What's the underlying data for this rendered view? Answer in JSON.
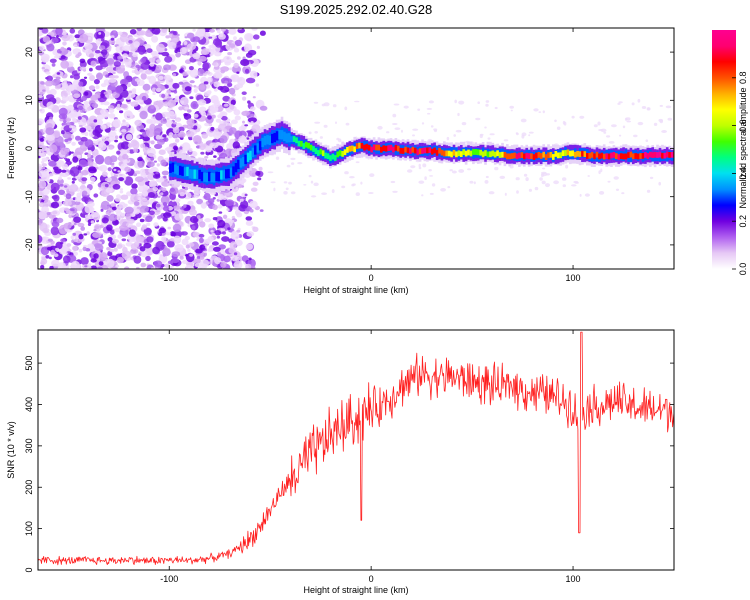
{
  "title": "S199.2025.292.02.40.G28",
  "chart_data": [
    {
      "type": "heatmap",
      "name": "spectrogram",
      "xlabel": "Height of straight line (km)",
      "ylabel": "Frequency (Hz)",
      "xlim": [
        -165,
        150
      ],
      "ylim": [
        -25,
        25
      ],
      "xticks": [
        -100,
        0,
        100
      ],
      "yticks": [
        -20,
        -10,
        0,
        10,
        20
      ],
      "colorbar": {
        "label": "Normalized spectral amplitude",
        "range": [
          0,
          1
        ],
        "ticks": [
          0.0,
          0.2,
          0.4,
          0.6,
          0.8
        ],
        "tick_labels": [
          "0.0",
          "0.2",
          "0.4",
          "0.6",
          "0.8"
        ],
        "colors": [
          "#ffffff",
          "#e6c8f5",
          "#b060f0",
          "#7000e0",
          "#0000ff",
          "#0090ff",
          "#00e0f0",
          "#00ff80",
          "#40ff00",
          "#c0ff00",
          "#ffff00",
          "#ffb000",
          "#ff5000",
          "#ff0000",
          "#ff0070",
          "#ff0090"
        ]
      },
      "ridge": {
        "x": [
          -100,
          -90,
          -80,
          -70,
          -65,
          -60,
          -55,
          -50,
          -45,
          -40,
          -35,
          -30,
          -25,
          -20,
          -15,
          -10,
          -5,
          0,
          10,
          20,
          30,
          40,
          50,
          60,
          70,
          80,
          90,
          95,
          100,
          110,
          120,
          130,
          140,
          150
        ],
        "freq": [
          -4,
          -5,
          -6,
          -5,
          -3,
          -1,
          1,
          2,
          3,
          2,
          1,
          0,
          -1,
          -2,
          -1,
          0,
          0.5,
          0,
          0,
          -0.5,
          -0.5,
          -1,
          -1,
          -1,
          -1.5,
          -1.5,
          -1.5,
          -1,
          -1,
          -1.5,
          -1.5,
          -1.5,
          -1.5,
          -1.5
        ],
        "amp": [
          0.3,
          0.35,
          0.35,
          0.3,
          0.3,
          0.35,
          0.3,
          0.3,
          0.35,
          0.4,
          0.5,
          0.5,
          0.55,
          0.5,
          0.6,
          0.7,
          0.85,
          0.9,
          0.85,
          0.85,
          0.9,
          0.7,
          0.6,
          0.6,
          0.85,
          0.9,
          0.7,
          0.6,
          0.75,
          0.85,
          0.9,
          0.85,
          0.95,
          0.95
        ]
      }
    },
    {
      "type": "line",
      "name": "snr",
      "xlabel": "Height of straight line (km)",
      "ylabel": "SNR (10 * v/v)",
      "xlim": [
        -165,
        150
      ],
      "ylim": [
        0,
        580
      ],
      "xticks": [
        -100,
        0,
        100
      ],
      "yticks": [
        0,
        100,
        200,
        300,
        400,
        500
      ],
      "color": "#ff2020",
      "x": [
        -165,
        -150,
        -140,
        -130,
        -120,
        -110,
        -100,
        -90,
        -80,
        -75,
        -70,
        -65,
        -60,
        -55,
        -50,
        -45,
        -40,
        -35,
        -30,
        -25,
        -20,
        -15,
        -10,
        -5,
        0,
        5,
        10,
        15,
        20,
        25,
        30,
        35,
        40,
        45,
        50,
        55,
        60,
        65,
        70,
        75,
        80,
        85,
        90,
        95,
        100,
        103,
        105,
        110,
        115,
        120,
        125,
        130,
        135,
        140,
        145,
        150
      ],
      "y": [
        25,
        22,
        24,
        22,
        25,
        22,
        24,
        23,
        28,
        33,
        40,
        55,
        75,
        105,
        145,
        185,
        215,
        245,
        275,
        300,
        325,
        345,
        360,
        375,
        385,
        400,
        420,
        445,
        460,
        475,
        470,
        465,
        470,
        460,
        455,
        450,
        445,
        440,
        450,
        435,
        430,
        425,
        420,
        410,
        400,
        350,
        390,
        400,
        395,
        410,
        400,
        395,
        390,
        385,
        390,
        385
      ]
    }
  ]
}
